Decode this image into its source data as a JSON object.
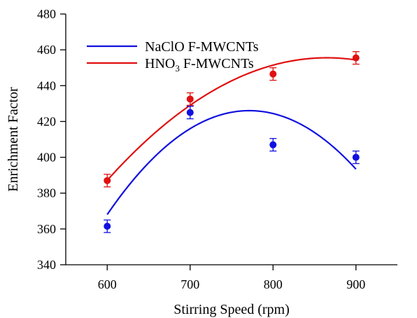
{
  "chart_data": {
    "type": "scatter",
    "title": "",
    "xlabel": "Stirring Speed (rpm)",
    "ylabel": "Enrichment Factor",
    "xlim": [
      550,
      950
    ],
    "ylim": [
      340,
      480
    ],
    "x_ticks": [
      600,
      700,
      800,
      900
    ],
    "y_ticks": [
      340,
      360,
      380,
      400,
      420,
      440,
      460,
      480
    ],
    "grid": false,
    "legend_position": "top-left",
    "series": [
      {
        "name_main": "NaClO F-MWCNTs",
        "color": "#1010e0",
        "x": [
          600,
          700,
          800,
          900
        ],
        "y": [
          361.5,
          425,
          407,
          400
        ],
        "error": [
          3.5,
          3.5,
          3.5,
          3.5
        ],
        "fit": {
          "type": "quadratic",
          "x": [
            600,
            700,
            750,
            800,
            900
          ],
          "y": [
            368,
            416,
            425.5,
            424,
            393.5
          ]
        }
      },
      {
        "name_main": "HNO",
        "name_sub": "3",
        "name_rest": " F-MWCNTs",
        "color": "#e01010",
        "x": [
          600,
          700,
          800,
          900
        ],
        "y": [
          387,
          432.5,
          446.5,
          455.5
        ],
        "error": [
          3.5,
          3.5,
          3.5,
          3.5
        ],
        "fit": {
          "type": "quadratic",
          "x": [
            600,
            700,
            800,
            900
          ],
          "y": [
            387,
            429.5,
            451,
            454.5
          ]
        }
      }
    ]
  }
}
